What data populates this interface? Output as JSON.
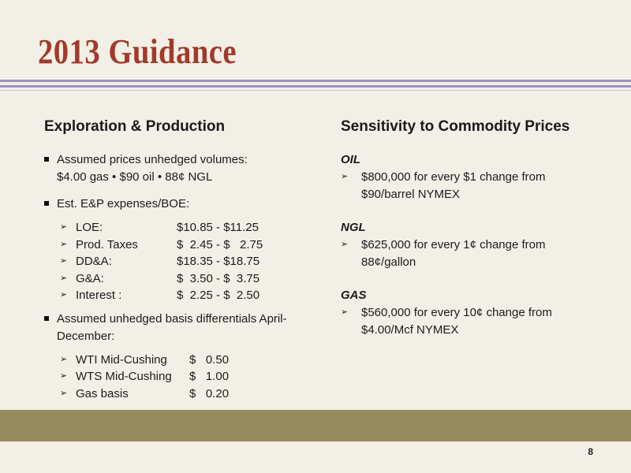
{
  "slide": {
    "title": "2013 Guidance",
    "page_number": "8",
    "colors": {
      "title": "#a23a2b",
      "rule": "#9c8fbe",
      "footer_band": "#958b5c",
      "background": "#f2f0e6"
    }
  },
  "left": {
    "heading": "Exploration & Production",
    "bullet1": {
      "line1": "Assumed prices unhedged volumes:",
      "line2": "$4.00 gas • $90 oil • 88¢ NGL"
    },
    "bullet2": {
      "text": "Est. E&P expenses/BOE:",
      "items": [
        {
          "label": "LOE:",
          "value": "$10.85 - $11.25"
        },
        {
          "label": "Prod. Taxes",
          "value": "$  2.45 - $   2.75"
        },
        {
          "label": "DD&A:",
          "value": "$18.35 - $18.75"
        },
        {
          "label": "G&A:",
          "value": "$  3.50 - $  3.75"
        },
        {
          "label": "Interest :",
          "value": "$  2.25 - $  2.50"
        }
      ]
    },
    "bullet3": {
      "line1": "Assumed unhedged basis differentials April-",
      "line2": "December:",
      "items": [
        {
          "label": "WTI Mid-Cushing",
          "value": "$   0.50"
        },
        {
          "label": "WTS Mid-Cushing",
          "value": "$   1.00"
        },
        {
          "label": "Gas basis",
          "value": "$   0.20"
        }
      ]
    }
  },
  "right": {
    "heading": "Sensitivity to Commodity Prices",
    "blocks": [
      {
        "label": "OIL",
        "line1": "$800,000 for every $1 change from",
        "line2": "$90/barrel NYMEX"
      },
      {
        "label": "NGL",
        "line1": "$625,000 for every 1¢ change from",
        "line2": "88¢/gallon"
      },
      {
        "label": "GAS",
        "line1": "$560,000 for every 10¢ change from",
        "line2": "$4.00/Mcf NYMEX"
      }
    ]
  }
}
